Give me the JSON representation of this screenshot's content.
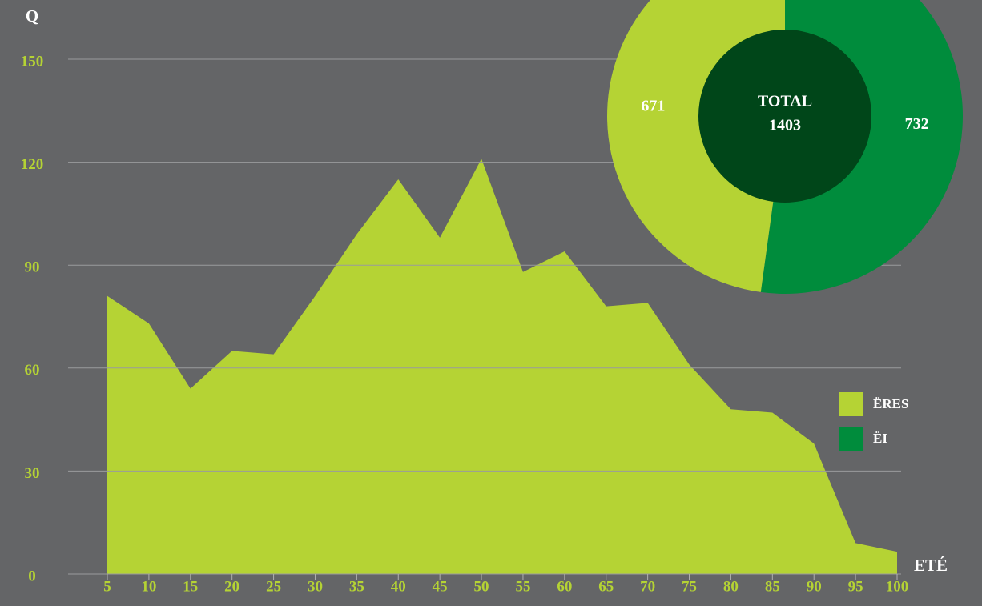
{
  "chart_data": [
    {
      "type": "area",
      "y_label": "Q",
      "x_label": "ETÉ",
      "color": "#b5d334",
      "x": [
        5,
        10,
        15,
        20,
        25,
        30,
        35,
        40,
        45,
        50,
        55,
        60,
        65,
        70,
        75,
        80,
        85,
        90,
        95,
        100
      ],
      "values": [
        81,
        73,
        54,
        65,
        64,
        81,
        99,
        115,
        98,
        121,
        88,
        94,
        78,
        79,
        61,
        48,
        47,
        38,
        9,
        6.5
      ],
      "xlim": [
        5,
        100
      ],
      "xticks": [
        5,
        10,
        15,
        20,
        25,
        30,
        35,
        40,
        45,
        50,
        55,
        60,
        65,
        70,
        75,
        80,
        85,
        90,
        95,
        100
      ],
      "ylim": [
        0,
        150
      ],
      "yticks": [
        0,
        30,
        60,
        90,
        120,
        150
      ],
      "grid": true
    },
    {
      "type": "pie",
      "center_label": "TOTAL",
      "total": 1403,
      "categories": [
        "ËRES",
        "ËI"
      ],
      "values": [
        671,
        732
      ],
      "colors": [
        "#b5d334",
        "#008c3c"
      ],
      "center_color": "#004619",
      "legend": "right"
    }
  ]
}
